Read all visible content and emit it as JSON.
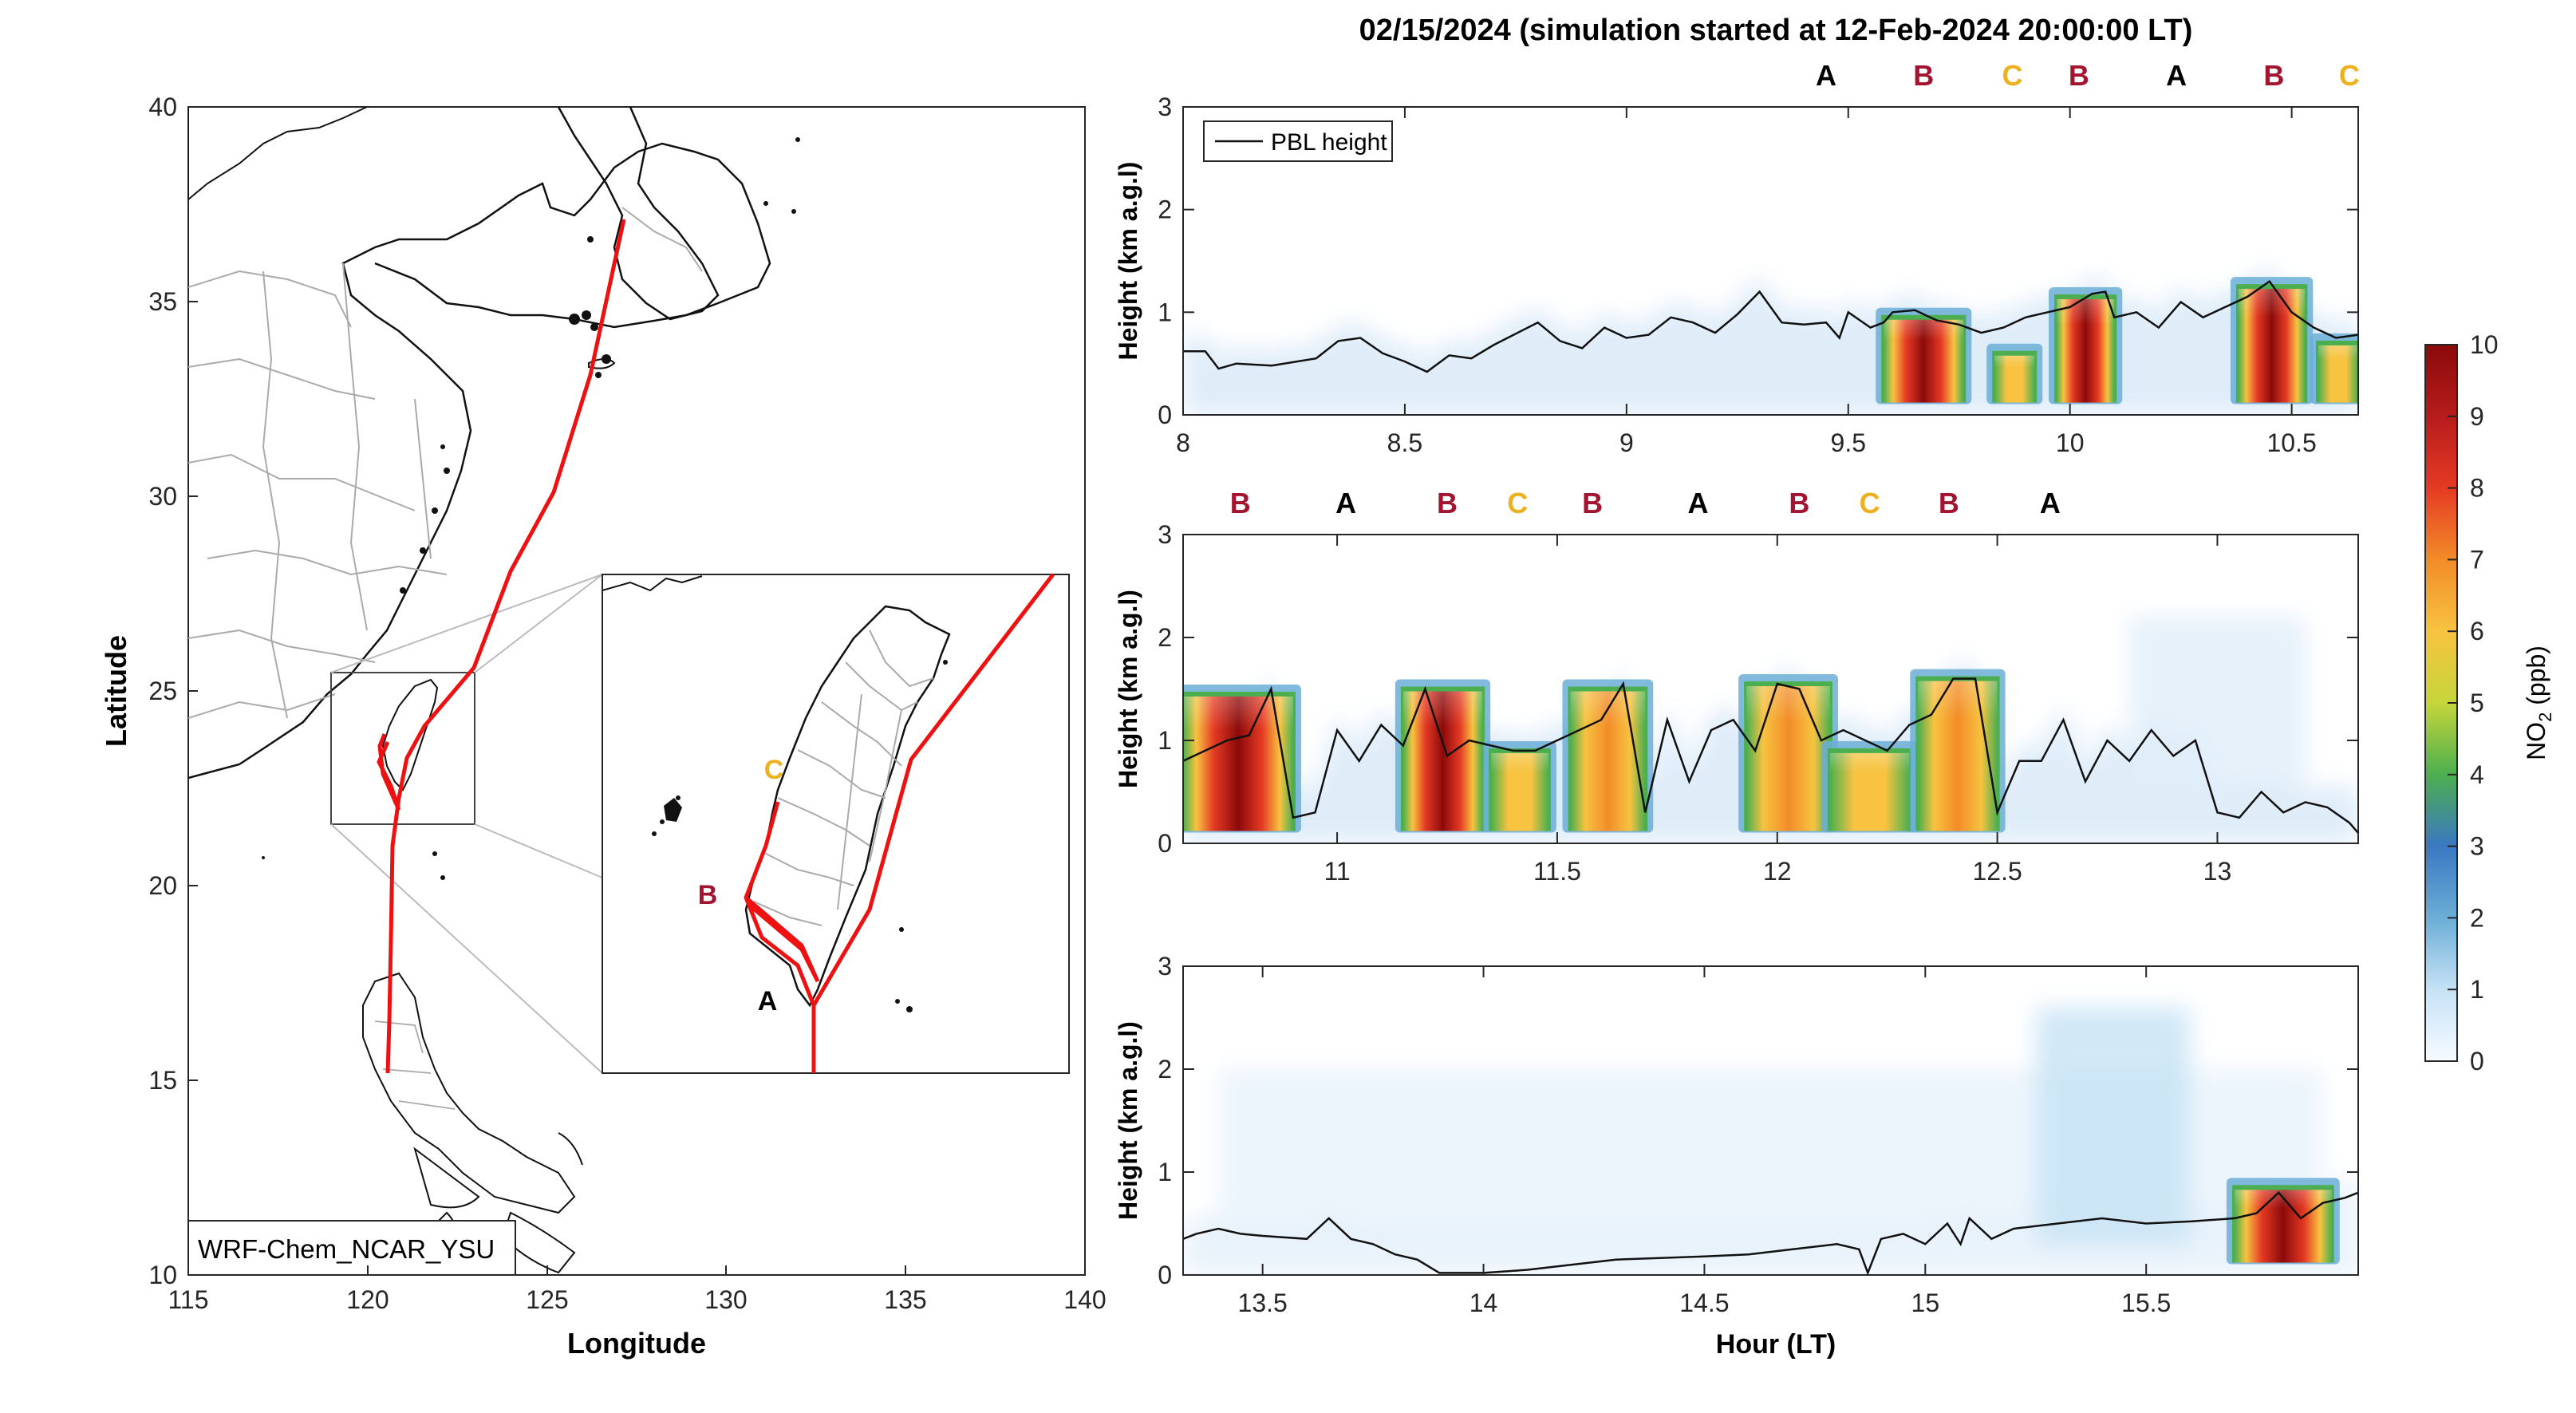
{
  "title": "02/15/2024 (simulation started at 12-Feb-2024 20:00:00 LT)",
  "colors": {
    "track": "#ee1111",
    "label_A": "#000000",
    "label_B": "#a2142f",
    "label_C": "#edb120",
    "colormap": [
      "#f7fbff",
      "#c6e2f5",
      "#6baed6",
      "#3a78c2",
      "#4caf4f",
      "#c6d63a",
      "#f7c340",
      "#f28c28",
      "#e53a24",
      "#b71c1c",
      "#8b0a0a"
    ]
  },
  "map": {
    "xlabel": "Longitude",
    "ylabel": "Latitude",
    "xticks": [
      "115",
      "120",
      "125",
      "130",
      "135",
      "140"
    ],
    "yticks": [
      "10",
      "15",
      "20",
      "25",
      "30",
      "35",
      "40"
    ],
    "xlim": [
      115,
      140
    ],
    "ylim": [
      10,
      40
    ],
    "model_label": "WRF-Chem_NCAR_YSU",
    "inset_labels": [
      "C",
      "B",
      "A"
    ]
  },
  "colorbar": {
    "label": "NO2 (ppb)",
    "label_main": "NO",
    "label_sub": "2",
    "label_unit": " (ppb)",
    "ticks": [
      "0",
      "1",
      "2",
      "3",
      "4",
      "5",
      "6",
      "7",
      "8",
      "9",
      "10"
    ],
    "range": [
      0,
      10
    ]
  },
  "shared_xlabel": "Hour (LT)",
  "chart_data": [
    {
      "type": "heatmap",
      "ylabel": "Height (km a.g.l)",
      "xlim": [
        8.0,
        10.65
      ],
      "ylim": [
        0,
        3
      ],
      "xticks": [
        "8",
        "8.5",
        "9",
        "9.5",
        "10",
        "10.5"
      ],
      "yticks": [
        "0",
        "1",
        "2",
        "3"
      ],
      "legend": "PBL height",
      "legend_position": "top-left",
      "site_labels": [
        {
          "label": "A",
          "hour": 9.45
        },
        {
          "label": "B",
          "hour": 9.67
        },
        {
          "label": "C",
          "hour": 9.87
        },
        {
          "label": "B",
          "hour": 10.02
        },
        {
          "label": "A",
          "hour": 10.24
        },
        {
          "label": "B",
          "hour": 10.46
        },
        {
          "label": "C",
          "hour": 10.63
        }
      ],
      "pbl_height": {
        "x": [
          8.0,
          8.05,
          8.08,
          8.12,
          8.2,
          8.3,
          8.35,
          8.4,
          8.45,
          8.5,
          8.55,
          8.6,
          8.65,
          8.7,
          8.8,
          8.85,
          8.9,
          8.95,
          9.0,
          9.05,
          9.1,
          9.15,
          9.2,
          9.25,
          9.3,
          9.35,
          9.4,
          9.45,
          9.48,
          9.5,
          9.55,
          9.58,
          9.6,
          9.65,
          9.7,
          9.75,
          9.8,
          9.85,
          9.9,
          9.95,
          10.0,
          10.05,
          10.08,
          10.1,
          10.15,
          10.2,
          10.25,
          10.3,
          10.35,
          10.4,
          10.45,
          10.5,
          10.55,
          10.6,
          10.65
        ],
        "y": [
          0.62,
          0.62,
          0.45,
          0.5,
          0.48,
          0.55,
          0.72,
          0.75,
          0.6,
          0.52,
          0.42,
          0.58,
          0.55,
          0.68,
          0.9,
          0.72,
          0.65,
          0.85,
          0.75,
          0.78,
          0.95,
          0.9,
          0.8,
          0.98,
          1.2,
          0.9,
          0.88,
          0.9,
          0.75,
          1.0,
          0.85,
          0.9,
          1.0,
          1.02,
          0.92,
          0.88,
          0.8,
          0.85,
          0.95,
          1.0,
          1.05,
          1.18,
          1.2,
          0.95,
          1.0,
          0.85,
          1.1,
          0.95,
          1.05,
          1.15,
          1.3,
          1.0,
          0.85,
          0.75,
          0.78
        ]
      },
      "no2_plumes": [
        {
          "x_start": 9.58,
          "x_end": 9.76,
          "top_km": 0.95,
          "peak_ppb": 10
        },
        {
          "x_start": 9.83,
          "x_end": 9.92,
          "top_km": 0.6,
          "peak_ppb": 6
        },
        {
          "x_start": 9.97,
          "x_end": 10.1,
          "top_km": 1.15,
          "peak_ppb": 9.5
        },
        {
          "x_start": 10.38,
          "x_end": 10.53,
          "top_km": 1.25,
          "peak_ppb": 9.5
        },
        {
          "x_start": 10.56,
          "x_end": 10.65,
          "top_km": 0.7,
          "peak_ppb": 6
        }
      ]
    },
    {
      "type": "heatmap",
      "ylabel": "Height (km a.g.l)",
      "xlim": [
        10.65,
        13.32
      ],
      "ylim": [
        0,
        3
      ],
      "xticks": [
        "11",
        "11.5",
        "12",
        "12.5",
        "13"
      ],
      "yticks": [
        "0",
        "1",
        "2",
        "3"
      ],
      "site_labels": [
        {
          "label": "B",
          "hour": 10.78
        },
        {
          "label": "A",
          "hour": 11.02
        },
        {
          "label": "B",
          "hour": 11.25
        },
        {
          "label": "C",
          "hour": 11.41
        },
        {
          "label": "B",
          "hour": 11.58
        },
        {
          "label": "A",
          "hour": 11.82
        },
        {
          "label": "B",
          "hour": 12.05
        },
        {
          "label": "C",
          "hour": 12.21
        },
        {
          "label": "B",
          "hour": 12.39
        },
        {
          "label": "A",
          "hour": 12.62
        }
      ],
      "pbl_height": {
        "x": [
          10.65,
          10.7,
          10.75,
          10.8,
          10.85,
          10.9,
          10.95,
          11.0,
          11.05,
          11.1,
          11.15,
          11.2,
          11.25,
          11.3,
          11.35,
          11.4,
          11.45,
          11.5,
          11.55,
          11.6,
          11.65,
          11.7,
          11.75,
          11.8,
          11.85,
          11.9,
          11.95,
          12.0,
          12.05,
          12.1,
          12.15,
          12.2,
          12.25,
          12.3,
          12.35,
          12.4,
          12.45,
          12.5,
          12.55,
          12.6,
          12.65,
          12.7,
          12.75,
          12.8,
          12.85,
          12.9,
          12.95,
          13.0,
          13.05,
          13.1,
          13.15,
          13.2,
          13.25,
          13.3,
          13.32
        ],
        "y": [
          0.8,
          0.9,
          1.0,
          1.05,
          1.5,
          0.25,
          0.3,
          1.1,
          0.8,
          1.15,
          0.95,
          1.5,
          0.85,
          1.0,
          0.95,
          0.9,
          0.9,
          1.0,
          1.1,
          1.2,
          1.55,
          0.3,
          1.2,
          0.6,
          1.1,
          1.2,
          0.9,
          1.55,
          1.5,
          1.0,
          1.1,
          1.0,
          0.9,
          1.15,
          1.25,
          1.6,
          1.6,
          0.3,
          0.8,
          0.8,
          1.2,
          0.6,
          1.0,
          0.8,
          1.1,
          0.85,
          1.0,
          0.3,
          0.25,
          0.5,
          0.3,
          0.4,
          0.35,
          0.2,
          0.1
        ]
      },
      "no2_plumes": [
        {
          "x_start": 10.65,
          "x_end": 10.9,
          "top_km": 1.45,
          "peak_ppb": 9.5
        },
        {
          "x_start": 11.15,
          "x_end": 11.33,
          "top_km": 1.5,
          "peak_ppb": 9.5
        },
        {
          "x_start": 11.35,
          "x_end": 11.48,
          "top_km": 0.9,
          "peak_ppb": 6
        },
        {
          "x_start": 11.53,
          "x_end": 11.7,
          "top_km": 1.5,
          "peak_ppb": 8
        },
        {
          "x_start": 11.93,
          "x_end": 12.12,
          "top_km": 1.55,
          "peak_ppb": 7
        },
        {
          "x_start": 12.12,
          "x_end": 12.3,
          "top_km": 0.9,
          "peak_ppb": 6
        },
        {
          "x_start": 12.32,
          "x_end": 12.5,
          "top_km": 1.6,
          "peak_ppb": 7
        }
      ]
    },
    {
      "type": "heatmap",
      "ylabel": "Height (km a.g.l)",
      "xlabel": "Hour (LT)",
      "xlim": [
        13.32,
        15.98
      ],
      "ylim": [
        0,
        3
      ],
      "xticks": [
        "13.5",
        "14",
        "14.5",
        "15",
        "15.5"
      ],
      "yticks": [
        "0",
        "1",
        "2",
        "3"
      ],
      "pbl_height": {
        "x": [
          13.32,
          13.35,
          13.4,
          13.45,
          13.5,
          13.6,
          13.65,
          13.7,
          13.75,
          13.8,
          13.85,
          13.9,
          14.0,
          14.1,
          14.2,
          14.3,
          14.5,
          14.6,
          14.7,
          14.8,
          14.85,
          14.87,
          14.9,
          14.95,
          15.0,
          15.05,
          15.08,
          15.1,
          15.15,
          15.2,
          15.3,
          15.4,
          15.5,
          15.6,
          15.7,
          15.75,
          15.8,
          15.85,
          15.9,
          15.95,
          15.98
        ],
        "y": [
          0.35,
          0.4,
          0.45,
          0.4,
          0.38,
          0.35,
          0.55,
          0.35,
          0.3,
          0.2,
          0.15,
          0.02,
          0.02,
          0.05,
          0.1,
          0.15,
          0.18,
          0.2,
          0.25,
          0.3,
          0.25,
          0.02,
          0.35,
          0.4,
          0.3,
          0.5,
          0.3,
          0.55,
          0.35,
          0.45,
          0.5,
          0.55,
          0.5,
          0.52,
          0.55,
          0.6,
          0.8,
          0.55,
          0.7,
          0.75,
          0.8
        ]
      },
      "no2_plumes": [
        {
          "x_start": 15.7,
          "x_end": 15.92,
          "top_km": 0.85,
          "peak_ppb": 9
        }
      ]
    }
  ]
}
